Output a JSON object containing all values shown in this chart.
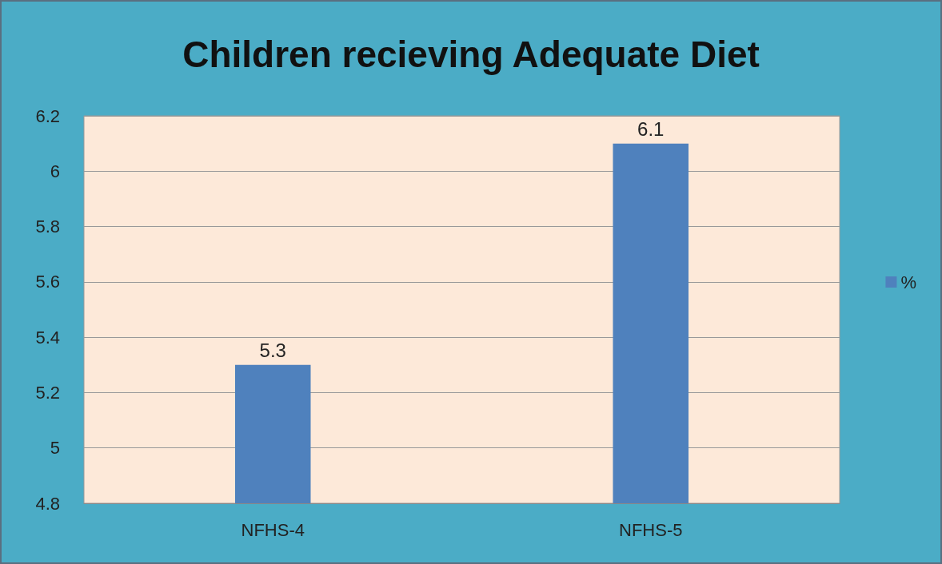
{
  "chart_data": {
    "type": "bar",
    "title": "Children recieving Adequate Diet",
    "categories": [
      "NFHS-4",
      "NFHS-5"
    ],
    "series": [
      {
        "name": "%",
        "color": "#4f81bd",
        "values": [
          5.3,
          6.1
        ]
      }
    ],
    "ylim": [
      4.8,
      6.2
    ],
    "yticks": [
      4.8,
      5,
      5.2,
      5.4,
      5.6,
      5.8,
      6,
      6.2
    ],
    "grid": "y",
    "legend": "right",
    "data_labels": true
  }
}
